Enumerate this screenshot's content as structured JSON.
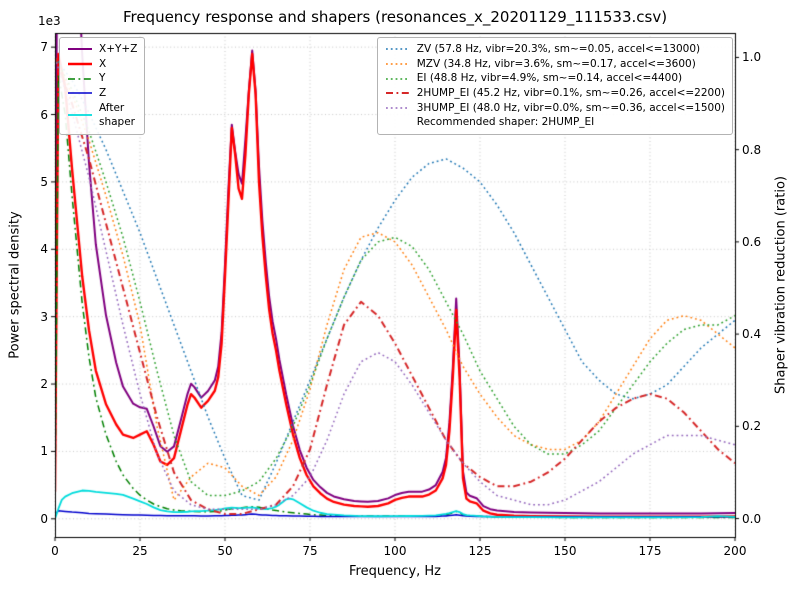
{
  "title": "Frequency response and shapers (resonances_x_20201129_111533.csv)",
  "axes": {
    "xlabel": "Frequency, Hz",
    "left_ylabel": "Power spectral density",
    "right_ylabel": "Shaper vibration reduction (ratio)",
    "offset_text": "1e3",
    "xlim": [
      0,
      200
    ],
    "xticks": [
      0,
      25,
      50,
      75,
      100,
      125,
      150,
      175,
      200
    ],
    "xtick_labels": [
      "0",
      "25",
      "50",
      "75",
      "100",
      "125",
      "150",
      "175",
      "200"
    ],
    "left_ylim": [
      -270,
      7210
    ],
    "left_yticks": [
      0,
      1000,
      2000,
      3000,
      4000,
      5000,
      6000,
      7000
    ],
    "left_ytick_labels": [
      "0",
      "1",
      "2",
      "3",
      "4",
      "5",
      "6",
      "7"
    ],
    "right_ylim": [
      -0.04,
      1.053
    ],
    "right_yticks": [
      0,
      0.2,
      0.4,
      0.6,
      0.8,
      1.0
    ],
    "right_ytick_labels": [
      "0.0",
      "0.2",
      "0.4",
      "0.6",
      "0.8",
      "1.0"
    ],
    "grid_color": "#c8c8c8",
    "spine_color": "#000000"
  },
  "chart_data": {
    "type": "line",
    "x_units": "Hz",
    "recommended_note": "Recommended shaper: 2HUMP_EI",
    "psd_x": [
      0,
      1,
      3,
      5,
      8,
      10,
      12,
      15,
      18,
      20,
      23,
      25,
      27,
      29,
      31,
      33,
      35,
      37,
      39,
      40,
      41,
      43,
      45,
      47,
      48,
      49,
      50,
      51,
      52,
      53,
      54,
      55,
      56,
      57,
      58,
      59,
      60,
      61,
      62,
      63,
      64,
      65,
      66,
      68,
      70,
      72,
      74,
      76,
      78,
      80,
      82,
      85,
      88,
      90,
      92,
      95,
      98,
      100,
      102,
      104,
      106,
      108,
      110,
      112,
      114,
      115,
      116,
      117,
      118,
      119,
      120,
      121,
      122,
      124,
      126,
      128,
      130,
      135,
      140,
      150,
      160,
      170,
      180,
      190,
      200
    ],
    "shaper_x": [
      0,
      5,
      10,
      15,
      20,
      25,
      30,
      35,
      40,
      45,
      50,
      55,
      60,
      65,
      70,
      75,
      80,
      85,
      90,
      95,
      100,
      105,
      110,
      115,
      120,
      125,
      130,
      135,
      140,
      145,
      150,
      155,
      160,
      165,
      170,
      175,
      180,
      185,
      190,
      195,
      200
    ],
    "series": [
      {
        "name": "sum",
        "label": "X+Y+Z",
        "legend": "psd",
        "axis": "left",
        "color": "#800080",
        "style": "solid",
        "width": 2,
        "x_ref": "psd_x",
        "y": [
          760,
          13620,
          12510,
          10100,
          6890,
          5280,
          4075,
          3020,
          2315,
          1962,
          1708,
          1655,
          1632,
          1370,
          1078,
          996,
          1075,
          1464,
          1859,
          2004,
          1954,
          1798,
          1898,
          2054,
          2260,
          2766,
          3778,
          4890,
          5850,
          5450,
          5116,
          4973,
          5632,
          6350,
          6950,
          6350,
          5232,
          4418,
          3805,
          3292,
          2930,
          2673,
          2361,
          1844,
          1382,
          1020,
          758,
          577,
          471,
          385,
          332,
          289,
          265,
          258,
          253,
          263,
          303,
          353,
          383,
          403,
          403,
          403,
          434,
          501,
          695,
          903,
          1423,
          2244,
          3270,
          2244,
          704,
          390,
          343,
          306,
          189,
          143,
          122,
          101,
          95,
          85,
          79,
          79,
          79,
          79,
          85
        ]
      },
      {
        "name": "x",
        "label": "X",
        "legend": "psd",
        "axis": "left",
        "color": "#ff0000",
        "style": "solid",
        "width": 2.4,
        "x_ref": "psd_x",
        "y": [
          400,
          6900,
          6400,
          5200,
          3600,
          2800,
          2200,
          1700,
          1400,
          1250,
          1200,
          1250,
          1300,
          1100,
          850,
          800,
          900,
          1300,
          1700,
          1850,
          1800,
          1650,
          1750,
          1900,
          2100,
          2600,
          3600,
          4700,
          5800,
          5400,
          4900,
          4750,
          5400,
          6300,
          6900,
          6300,
          5000,
          4200,
          3600,
          3100,
          2750,
          2500,
          2200,
          1700,
          1250,
          900,
          650,
          480,
          380,
          300,
          250,
          210,
          190,
          185,
          180,
          190,
          230,
          280,
          310,
          330,
          330,
          330,
          360,
          420,
          600,
          800,
          1300,
          2100,
          3100,
          2100,
          600,
          300,
          260,
          230,
          120,
          80,
          60,
          45,
          40,
          35,
          30,
          30,
          30,
          30,
          35
        ]
      },
      {
        "name": "y",
        "label": "Y",
        "legend": "psd",
        "axis": "left",
        "color": "#008000",
        "style": "dashdot",
        "width": 1.5,
        "x_ref": "psd_x",
        "y": [
          300,
          6600,
          6000,
          4800,
          3200,
          2400,
          1800,
          1250,
          850,
          650,
          450,
          350,
          280,
          220,
          180,
          150,
          130,
          120,
          115,
          110,
          110,
          105,
          105,
          110,
          115,
          120,
          130,
          140,
          150,
          155,
          160,
          165,
          170,
          175,
          180,
          175,
          170,
          160,
          150,
          140,
          130,
          125,
          115,
          100,
          90,
          80,
          70,
          60,
          55,
          50,
          48,
          45,
          42,
          40,
          40,
          40,
          40,
          40,
          40,
          40,
          40,
          40,
          40,
          45,
          55,
          60,
          75,
          90,
          110,
          90,
          60,
          50,
          45,
          40,
          35,
          30,
          30,
          25,
          25,
          20,
          20,
          20,
          20,
          20,
          20
        ]
      },
      {
        "name": "z",
        "label": "Z",
        "legend": "psd",
        "axis": "left",
        "color": "#0000cd",
        "style": "solid",
        "width": 1.5,
        "x_ref": "psd_x",
        "y": [
          60,
          120,
          110,
          100,
          90,
          80,
          75,
          70,
          65,
          62,
          58,
          55,
          52,
          50,
          48,
          46,
          45,
          44,
          44,
          44,
          44,
          43,
          43,
          44,
          45,
          46,
          48,
          50,
          52,
          54,
          56,
          58,
          62,
          66,
          70,
          66,
          62,
          58,
          55,
          52,
          50,
          48,
          46,
          44,
          42,
          40,
          38,
          37,
          36,
          35,
          34,
          34,
          33,
          33,
          33,
          33,
          33,
          33,
          33,
          33,
          33,
          33,
          34,
          36,
          40,
          43,
          48,
          54,
          60,
          54,
          44,
          40,
          38,
          36,
          34,
          33,
          32,
          31,
          30,
          30,
          29,
          29,
          29,
          29,
          30
        ]
      },
      {
        "name": "after_shaper",
        "label": "After\nshaper",
        "legend": "psd",
        "axis": "left",
        "color": "#00dcdc",
        "style": "solid",
        "width": 1.8,
        "x": [
          0,
          1,
          2,
          3,
          5,
          8,
          10,
          12,
          15,
          18,
          20,
          23,
          25,
          27,
          29,
          31,
          33,
          35,
          37,
          39,
          40,
          43,
          45,
          47,
          49,
          50,
          52,
          54,
          55,
          57,
          58,
          60,
          62,
          64,
          65,
          66,
          67,
          68,
          69,
          70,
          72,
          74,
          76,
          78,
          80,
          85,
          90,
          95,
          100,
          104,
          108,
          110,
          112,
          114,
          115,
          116,
          117,
          118,
          119,
          120,
          121,
          122,
          124,
          126,
          128,
          130,
          135,
          140,
          150,
          160,
          170,
          180,
          190,
          195,
          200
        ],
        "y": [
          0,
          150,
          280,
          330,
          380,
          420,
          415,
          400,
          385,
          370,
          355,
          300,
          260,
          220,
          170,
          130,
          110,
          100,
          100,
          105,
          110,
          115,
          120,
          130,
          145,
          155,
          165,
          158,
          160,
          165,
          168,
          150,
          145,
          160,
          180,
          210,
          250,
          290,
          300,
          290,
          230,
          170,
          120,
          90,
          70,
          50,
          40,
          38,
          40,
          42,
          45,
          48,
          52,
          65,
          72,
          85,
          100,
          115,
          100,
          70,
          55,
          50,
          45,
          35,
          30,
          28,
          25,
          24,
          22,
          22,
          22,
          22,
          25,
          40,
          30
        ]
      },
      {
        "name": "zv",
        "label": "ZV (57.8 Hz, vibr=20.3%, sm~=0.05, accel<=13000)",
        "legend": "shaper",
        "axis": "right",
        "color": "#1f77b4",
        "style": "dotted",
        "width": 1.5,
        "x_ref": "shaper_x",
        "y": [
          1.0,
          0.95,
          0.88,
          0.8,
          0.71,
          0.62,
          0.52,
          0.42,
          0.32,
          0.22,
          0.13,
          0.05,
          0.04,
          0.12,
          0.21,
          0.3,
          0.39,
          0.48,
          0.56,
          0.63,
          0.69,
          0.74,
          0.77,
          0.78,
          0.76,
          0.73,
          0.68,
          0.62,
          0.55,
          0.48,
          0.41,
          0.34,
          0.3,
          0.27,
          0.26,
          0.27,
          0.29,
          0.33,
          0.37,
          0.4,
          0.43
        ]
      },
      {
        "name": "mzv",
        "label": "MZV (34.8 Hz, vibr=3.6%, sm~=0.17, accel<=3600)",
        "legend": "shaper",
        "axis": "right",
        "color": "#ff7f0e",
        "style": "dotted",
        "width": 1.5,
        "x_ref": "shaper_x",
        "y": [
          1.0,
          0.92,
          0.82,
          0.7,
          0.57,
          0.42,
          0.2,
          0.04,
          0.09,
          0.12,
          0.11,
          0.07,
          0.05,
          0.09,
          0.17,
          0.28,
          0.42,
          0.54,
          0.61,
          0.62,
          0.6,
          0.55,
          0.48,
          0.41,
          0.33,
          0.27,
          0.22,
          0.18,
          0.16,
          0.15,
          0.15,
          0.17,
          0.21,
          0.27,
          0.33,
          0.39,
          0.43,
          0.44,
          0.43,
          0.4,
          0.37
        ]
      },
      {
        "name": "ei",
        "label": "EI (48.8 Hz, vibr=4.9%, sm~=0.14, accel<=4400)",
        "legend": "shaper",
        "axis": "right",
        "color": "#2ca02c",
        "style": "dotted",
        "width": 1.5,
        "x_ref": "shaper_x",
        "y": [
          1.0,
          0.93,
          0.84,
          0.73,
          0.61,
          0.47,
          0.32,
          0.18,
          0.08,
          0.05,
          0.05,
          0.06,
          0.08,
          0.13,
          0.2,
          0.29,
          0.39,
          0.48,
          0.56,
          0.6,
          0.61,
          0.59,
          0.54,
          0.47,
          0.4,
          0.32,
          0.26,
          0.2,
          0.16,
          0.14,
          0.14,
          0.16,
          0.19,
          0.24,
          0.29,
          0.34,
          0.38,
          0.41,
          0.42,
          0.42,
          0.44
        ]
      },
      {
        "name": "two_hump_ei",
        "label": "2HUMP_EI (45.2 Hz, vibr=0.1%, sm~=0.26, accel<=2200)",
        "legend": "shaper",
        "axis": "right",
        "color": "#d62728",
        "style": "dashdot",
        "width": 2,
        "x_ref": "shaper_x",
        "y": [
          1.0,
          0.9,
          0.78,
          0.64,
          0.5,
          0.36,
          0.22,
          0.1,
          0.04,
          0.02,
          0.01,
          0.01,
          0.02,
          0.03,
          0.07,
          0.15,
          0.29,
          0.42,
          0.47,
          0.44,
          0.38,
          0.31,
          0.24,
          0.17,
          0.12,
          0.09,
          0.07,
          0.07,
          0.08,
          0.1,
          0.13,
          0.17,
          0.21,
          0.24,
          0.26,
          0.27,
          0.26,
          0.23,
          0.19,
          0.15,
          0.12
        ]
      },
      {
        "name": "three_hump_ei",
        "label": "3HUMP_EI (48.0 Hz, vibr=0.0%, sm~=0.36, accel<=1500)",
        "legend": "shaper",
        "axis": "right",
        "color": "#9467bd",
        "style": "dotted",
        "width": 1.5,
        "x_ref": "shaper_x",
        "y": [
          1.0,
          0.88,
          0.74,
          0.58,
          0.42,
          0.27,
          0.14,
          0.06,
          0.03,
          0.02,
          0.02,
          0.02,
          0.02,
          0.03,
          0.05,
          0.09,
          0.17,
          0.27,
          0.34,
          0.36,
          0.34,
          0.29,
          0.23,
          0.17,
          0.12,
          0.08,
          0.05,
          0.04,
          0.03,
          0.03,
          0.04,
          0.06,
          0.08,
          0.11,
          0.14,
          0.16,
          0.18,
          0.18,
          0.18,
          0.17,
          0.16
        ]
      }
    ]
  }
}
